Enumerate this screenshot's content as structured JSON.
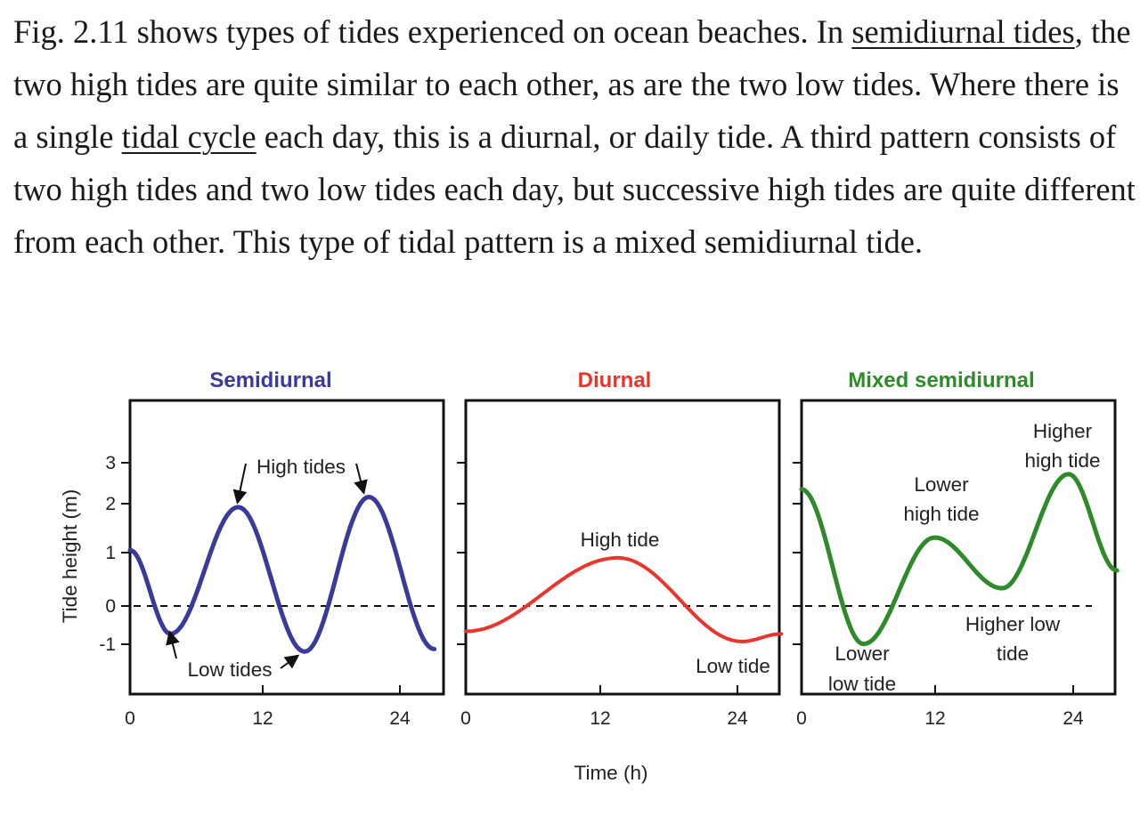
{
  "paragraph": {
    "t1": "Fig. 2.11 shows types of tides experienced on ocean beaches. In ",
    "link1": "semidiurnal tides",
    "t2": ", the two high tides are quite similar to each other, as are the two low tides. Where there is a single ",
    "link2": "tidal cycle",
    "t3": " each day, this is a diurnal, or daily tide. A third pattern consists of two high tides and two low tides each day, but successive high tides are quite different from each other. This type of tidal pattern is a mixed semidiurnal tide."
  },
  "colors": {
    "semidiurnal": "#3a3a9a",
    "diurnal": "#e8362f",
    "mixed": "#2f8a2b",
    "axis": "#111111"
  },
  "chart_data": [
    {
      "type": "line",
      "title": "Semidiurnal",
      "ylabel": "Tide height (m)",
      "xlabel": "Time (h)",
      "xticks": [
        "0",
        "12",
        "24"
      ],
      "yticks": [
        "3",
        "2",
        "1",
        "0",
        "-1"
      ],
      "xlim": [
        0,
        28
      ],
      "ylim": [
        -2,
        4
      ],
      "x": [
        0,
        3.6,
        9.6,
        15.5,
        21.2,
        27
      ],
      "y": [
        1.1,
        -0.55,
        1.95,
        -0.9,
        2.15,
        -0.85
      ],
      "annotations": [
        "High tides",
        "Low tides"
      ]
    },
    {
      "type": "line",
      "title": "Diurnal",
      "xticks": [
        "0",
        "12",
        "24"
      ],
      "xlim": [
        0,
        28
      ],
      "ylim": [
        -2,
        4
      ],
      "x": [
        0,
        13.5,
        24.5,
        28
      ],
      "y": [
        -0.5,
        0.95,
        -0.7,
        -0.55
      ],
      "annotations": [
        "High tide",
        "Low tide"
      ]
    },
    {
      "type": "line",
      "title": "Mixed semidiurnal",
      "xticks": [
        "0",
        "12",
        "24"
      ],
      "xlim": [
        0,
        28
      ],
      "ylim": [
        -2,
        4
      ],
      "x": [
        0,
        5.5,
        11.8,
        17.8,
        23.7,
        28
      ],
      "y": [
        2.3,
        -0.75,
        1.35,
        0.35,
        2.6,
        0.7
      ],
      "annotations": [
        "Higher high tide",
        "Lower high tide",
        "Higher low tide",
        "Lower low tide"
      ]
    }
  ],
  "figure": {
    "titles": [
      "Semidiurnal",
      "Diurnal",
      "Mixed semidiurnal"
    ],
    "ylabel": "Tide height (m)",
    "xlabel": "Time (h)",
    "xticks": [
      "0",
      "12",
      "24"
    ],
    "yticks": [
      "3",
      "2",
      "1",
      "0",
      "-1"
    ],
    "ann_semi_high": "High tides",
    "ann_semi_low": "Low tides",
    "ann_diur_high": "High tide",
    "ann_diur_low": "Low tide",
    "ann_mix_hh_1": "Higher",
    "ann_mix_hh_2": "high tide",
    "ann_mix_lh_1": "Lower",
    "ann_mix_lh_2": "high tide",
    "ann_mix_hl_1": "Higher low",
    "ann_mix_hl_2": "tide",
    "ann_mix_ll_1": "Lower",
    "ann_mix_ll_2": "low tide"
  }
}
